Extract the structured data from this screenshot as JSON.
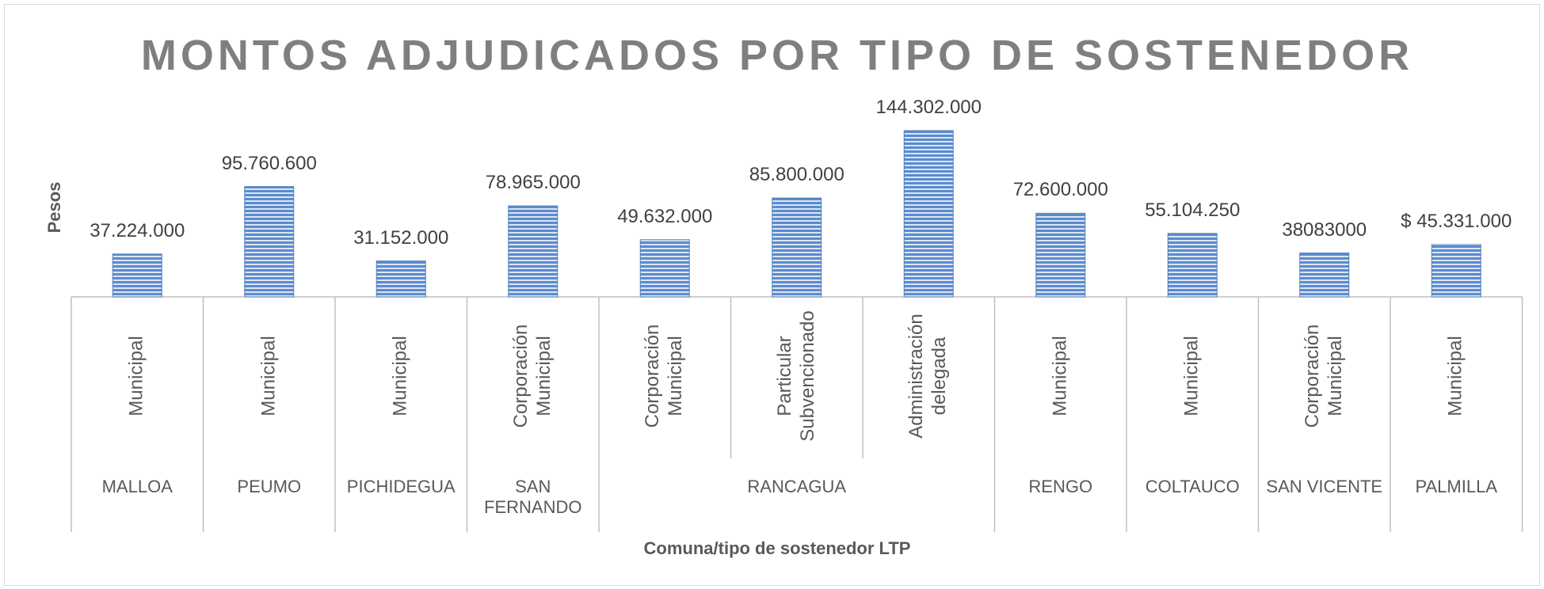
{
  "chart_data": {
    "type": "bar",
    "title": "MONTOS ADJUDICADOS POR TIPO DE SOSTENEDOR",
    "ylabel": "Pesos",
    "xlabel": "Comuna/tipo de sostenedor LTP",
    "color": "#4f81bd",
    "groups": [
      {
        "name": "MALLOA",
        "categories": [
          "Municipal"
        ]
      },
      {
        "name": "PEUMO",
        "categories": [
          "Municipal"
        ]
      },
      {
        "name": "PICHIDEGUA",
        "categories": [
          "Municipal"
        ]
      },
      {
        "name": "SAN FERNANDO",
        "categories": [
          "Corporación Municipal"
        ]
      },
      {
        "name": "RANCAGUA",
        "categories": [
          "Corporación Municipal",
          "Particular Subvencionado",
          "Administración delegada"
        ]
      },
      {
        "name": "RENGO",
        "categories": [
          "Municipal"
        ]
      },
      {
        "name": "COLTAUCO",
        "categories": [
          "Municipal"
        ]
      },
      {
        "name": "SAN VICENTE",
        "categories": [
          "Corporación Municipal"
        ]
      },
      {
        "name": "PALMILLA",
        "categories": [
          "Municipal"
        ]
      }
    ],
    "values": [
      37224000,
      95760600,
      31152000,
      78965000,
      49632000,
      85800000,
      144302000,
      72600000,
      55104250,
      38083000,
      45331000
    ],
    "value_labels": [
      "37.224.000",
      "95.760.600",
      "31.152.000",
      "78.965.000",
      "49.632.000",
      "85.800.000",
      "144.302.000",
      "72.600.000",
      "55.104.250",
      "38083000",
      "$ 45.331.000"
    ]
  }
}
